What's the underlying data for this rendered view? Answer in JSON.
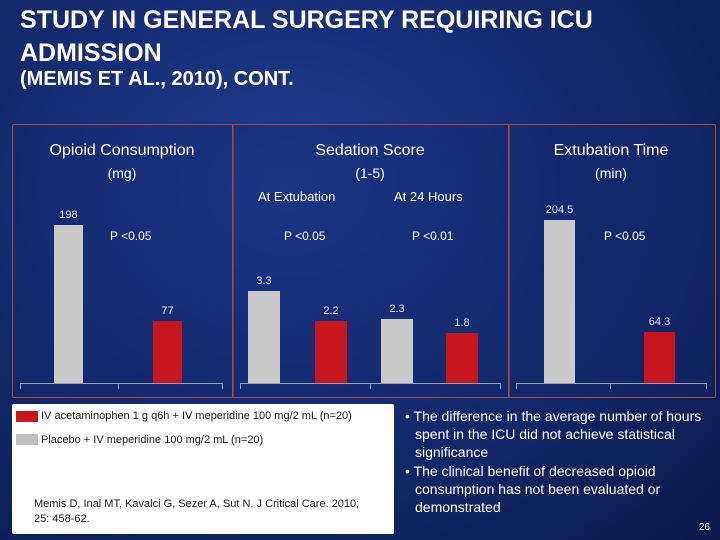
{
  "header": {
    "title": "STUDY IN GENERAL SURGERY REQUIRING ICU ADMISSION",
    "subtitle": "(MEMIS ET AL., 2010), CONT."
  },
  "chart_data": [
    {
      "type": "bar",
      "title": "Opioid Consumption",
      "ylabel": "(mg)",
      "categories": [
        ""
      ],
      "series": [
        {
          "values": [
            198
          ],
          "color": "#c9c9c9"
        },
        {
          "values": [
            77
          ],
          "color": "#c8141c"
        }
      ],
      "data_labels": [
        "198",
        "77"
      ],
      "annotations": [
        "P <0.05"
      ],
      "ylim": [
        0,
        210
      ]
    },
    {
      "type": "bar",
      "title": "Sedation Score",
      "ylabel": "(1-5)",
      "categories": [
        "At Extubation",
        "At 24 Hours"
      ],
      "series": [
        {
          "values": [
            3.3,
            2.3
          ],
          "color": "#c9c9c9"
        },
        {
          "values": [
            2.2,
            1.8
          ],
          "color": "#c8141c"
        }
      ],
      "data_labels": [
        [
          "3.3",
          "2.2"
        ],
        [
          "2.3",
          "1.8"
        ]
      ],
      "annotations": [
        "P <0.05",
        "P <0.01"
      ],
      "ylim": [
        0,
        5
      ]
    },
    {
      "type": "bar",
      "title": "Extubation Time",
      "ylabel": "(min)",
      "categories": [
        ""
      ],
      "series": [
        {
          "values": [
            204.5
          ],
          "color": "#c9c9c9"
        },
        {
          "values": [
            64.3
          ],
          "color": "#c8141c"
        }
      ],
      "data_labels": [
        "204.5",
        "64.3"
      ],
      "annotations": [
        "P <0.05"
      ],
      "ylim": [
        0,
        220
      ]
    }
  ],
  "legend": {
    "items": [
      {
        "label": "IV acetaminophen 1 g q6h  + IV meperidine 100 mg/2 mL (n=20)",
        "color": "#c8141c"
      },
      {
        "label": "Placebo + IV meperidine 100 mg/2 mL (n=20)",
        "color": "#c9c9c9"
      }
    ]
  },
  "citation": "Memis D, Inal MT, Kavalci G, Sezer A, Sut N. J Critical Care. 2010; 25: 458-62.",
  "bullets": [
    "The difference in the average number of hours spent in the ICU did not achieve statistical significance",
    "The clinical benefit of decreased opioid consumption has not been evaluated or demonstrated"
  ],
  "page_number": "26"
}
